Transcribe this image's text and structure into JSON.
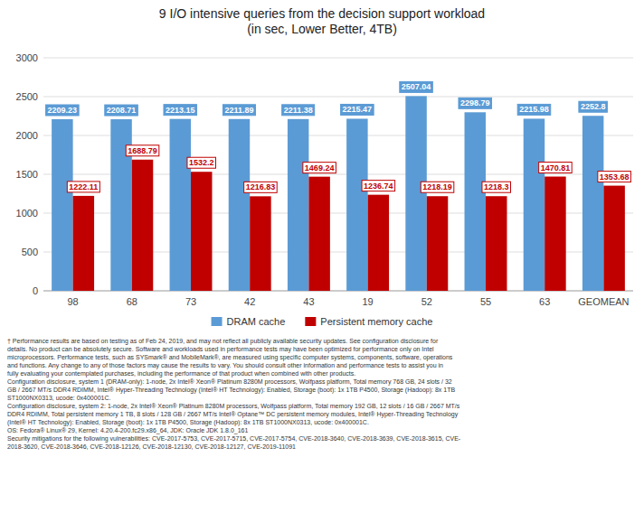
{
  "chart_data": {
    "type": "bar",
    "title": "9 I/O intensive queries from the decision support workload\n(in sec, Lower Better, 4TB)",
    "categories": [
      "98",
      "68",
      "73",
      "42",
      "43",
      "19",
      "52",
      "55",
      "63",
      "GEOMEAN"
    ],
    "series": [
      {
        "name": "DRAM cache",
        "color": "#5B9BD5",
        "values": [
          2209.23,
          2208.71,
          2213.15,
          2211.89,
          2211.38,
          2215.47,
          2507.04,
          2298.79,
          2215.98,
          2252.8
        ]
      },
      {
        "name": "Persistent memory cache",
        "color": "#C00000",
        "values": [
          1222.11,
          1688.79,
          1532.2,
          1216.83,
          1469.24,
          1236.74,
          1218.19,
          1218.3,
          1470.81,
          1353.68
        ]
      }
    ],
    "ylim": [
      0,
      3000
    ],
    "yticks": [
      0,
      500,
      1000,
      1500,
      2000,
      2500,
      3000
    ],
    "grid": true,
    "legend": "bottom",
    "data_labels": true,
    "footnote": "† Performance results are based on testing as of Feb 24, 2019, and may not reflect all publicly available security updates. See configuration disclosure for\ndetails. No product can be absolutely secure. Software and workloads used in performance tests may have been optimized for performance only on Intel\nmicroprocessors. Performance tests, such as SYSmark® and MobileMark®, are measured using specific computer systems, components, software, operations\nand functions. Any change to any of those factors may cause the results to vary. You should consult other information and performance tests to assist you in\nfully evaluating your contemplated purchases, including the performance of that product when combined with other products.\nConfiguration disclosure, system 1 (DRAM-only): 1-node, 2x Intel® Xeon® Platinum 8280M processors, Wolfpass platform, Total memory 768 GB, 24 slots / 32\nGB / 2667 MT/s DDR4 RDIMM, Intel® Hyper-Threading Technology (Intel® HT Technology): Enabled, Storage (boot): 1x 1TB P4500, Storage (Hadoop): 8x 1TB\nST1000NX0313, ucode: 0x400001C.\nConfiguration disclosure, system 2: 1-node, 2x Intel® Xeon® Platinum 8280M processors, Wolfpass platform, Total memory 192 GB, 12 slots / 16 GB / 2667 MT/s\nDDR4 RDIMM, Total persistent memory 1 TB, 8 slots / 128 GB / 2667 MT/s Intel® Optane™ DC persistent memory modules, Intel® Hyper-Threading Technology\n(Intel® HT Technology): Enabled, Storage (boot): 1x 1TB P4500, Storage (Hadoop): 8x 1TB ST1000NX0313, ucode: 0x400001C.\nOS: Fedora® Linux® 29, Kernel: 4.20.4-200.fc29.x86_64, JDK: Oracle JDK 1.8.0_161\nSecurity mitigations for the following vulnerabilities: CVE-2017-5753, CVE-2017-5715, CVE-2017-5754, CVE-2018-3640, CVE-2018-3639, CVE-2018-3615, CVE-\n2018-3620, CVE-2018-3646, CVE-2018-12126, CVE-2018-12130, CVE-2018-12127, CVE-2019-11091"
  }
}
